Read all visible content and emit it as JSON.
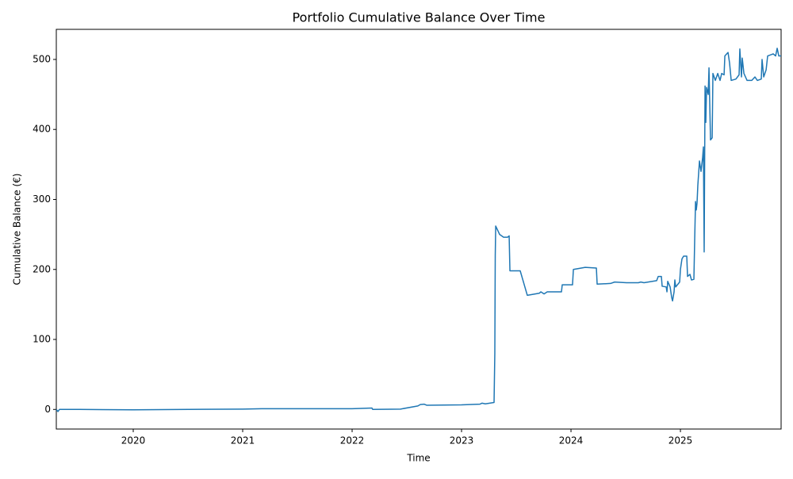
{
  "chart_data": {
    "type": "line",
    "title": "Portfolio Cumulative Balance Over Time",
    "x_label": "Time",
    "y_label": "Cumulative Balance (€)",
    "x": [
      2019.297,
      2019.312,
      2019.326,
      2019.507,
      2020.0,
      2021.0,
      2021.174,
      2022.0,
      2022.181,
      2022.188,
      2022.442,
      2022.601,
      2022.623,
      2022.659,
      2022.681,
      2023.0,
      2023.167,
      2023.188,
      2023.217,
      2023.297,
      2023.304,
      2023.308,
      2023.312,
      2023.333,
      2023.348,
      2023.384,
      2023.42,
      2023.435,
      2023.442,
      2023.536,
      2023.601,
      2023.71,
      2023.725,
      2023.754,
      2023.783,
      2023.913,
      2023.92,
      2024.014,
      2024.022,
      2024.13,
      2024.232,
      2024.239,
      2024.362,
      2024.399,
      2024.507,
      2024.616,
      2024.638,
      2024.667,
      2024.783,
      2024.797,
      2024.826,
      2024.833,
      2024.87,
      2024.877,
      2024.884,
      2024.906,
      2024.92,
      2024.928,
      2024.942,
      2024.949,
      2024.957,
      2024.993,
      2025.0,
      2025.014,
      2025.029,
      2025.058,
      2025.065,
      2025.087,
      2025.101,
      2025.123,
      2025.13,
      2025.138,
      2025.145,
      2025.152,
      2025.159,
      2025.174,
      2025.188,
      2025.203,
      2025.21,
      2025.217,
      2025.225,
      2025.232,
      2025.239,
      2025.254,
      2025.261,
      2025.275,
      2025.29,
      2025.297,
      2025.319,
      2025.341,
      2025.362,
      2025.377,
      2025.399,
      2025.406,
      2025.435,
      2025.449,
      2025.464,
      2025.507,
      2025.536,
      2025.543,
      2025.558,
      2025.565,
      2025.58,
      2025.609,
      2025.652,
      2025.681,
      2025.703,
      2025.739,
      2025.746,
      2025.761,
      2025.783,
      2025.797,
      2025.848,
      2025.87,
      2025.884,
      2025.899,
      2025.92
    ],
    "series": [
      {
        "color": "#1f77b4",
        "values": [
          0,
          -3,
          0,
          0,
          -0.5,
          0.5,
          1,
          1,
          2,
          0,
          0.5,
          5,
          7,
          7.5,
          6,
          6.5,
          7.5,
          9,
          8,
          10,
          80,
          220,
          262,
          255,
          250,
          246,
          246,
          248,
          198,
          198,
          163,
          166,
          168,
          165,
          168,
          168,
          178,
          178,
          200,
          203,
          202,
          179,
          180,
          182,
          181,
          181,
          182,
          181,
          184,
          190,
          190,
          176,
          175,
          168,
          183,
          175,
          160,
          155,
          168,
          185,
          175,
          182,
          200,
          215,
          219,
          219,
          190,
          193,
          185,
          186,
          240,
          297,
          285,
          295,
          320,
          355,
          340,
          360,
          375,
          225,
          462,
          410,
          460,
          450,
          488,
          385,
          388,
          480,
          470,
          480,
          470,
          480,
          478,
          505,
          510,
          495,
          470,
          472,
          478,
          515,
          475,
          502,
          480,
          470,
          470,
          475,
          470,
          472,
          500,
          475,
          485,
          505,
          508,
          505,
          516,
          505,
          505
        ]
      }
    ],
    "xlim": [
      2019.297,
      2025.92
    ],
    "xticks": [
      2020,
      2021,
      2022,
      2023,
      2024,
      2025
    ],
    "ylim": [
      -28,
      543
    ],
    "yticks": [
      0,
      100,
      200,
      300,
      400,
      500
    ],
    "grid": false
  }
}
